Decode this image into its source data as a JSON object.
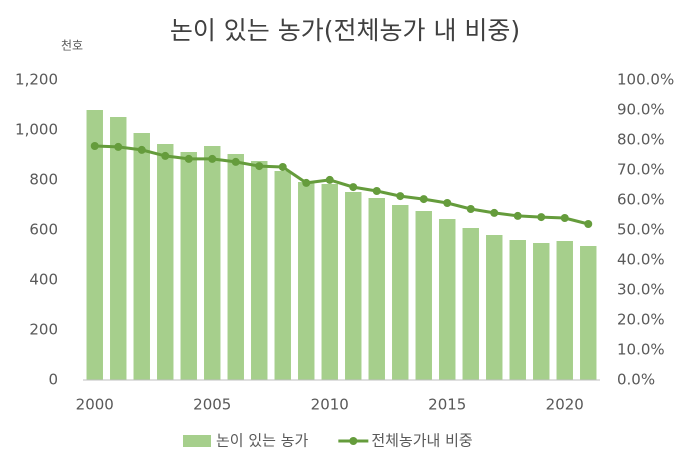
{
  "chart_data": {
    "type": "bar-line",
    "title": "논이 있는 농가(전체농가 내 비중)",
    "y_unit": "천호",
    "x": [
      2000,
      2001,
      2002,
      2003,
      2004,
      2005,
      2006,
      2007,
      2008,
      2009,
      2010,
      2011,
      2012,
      2013,
      2014,
      2015,
      2016,
      2017,
      2018,
      2019,
      2020,
      2021
    ],
    "xlim": [
      1999.5,
      2021.5
    ],
    "xticks": [
      2000,
      2005,
      2010,
      2015,
      2020
    ],
    "ylim": [
      0,
      1200
    ],
    "yticks": [
      0,
      200,
      400,
      600,
      800,
      {
        "value": 1000,
        "label": "1,000"
      },
      {
        "value": 1200,
        "label": "1,200"
      }
    ],
    "y2lim": [
      0,
      100
    ],
    "y2ticks": [
      {
        "value": 0,
        "label": "0.0%"
      },
      {
        "value": 10,
        "label": "10.0%"
      },
      {
        "value": 20,
        "label": "20.0%"
      },
      {
        "value": 30,
        "label": "30.0%"
      },
      {
        "value": 40,
        "label": "40.0%"
      },
      {
        "value": 50,
        "label": "50.0%"
      },
      {
        "value": 60,
        "label": "60.0%"
      },
      {
        "value": 70,
        "label": "70.0%"
      },
      {
        "value": 80,
        "label": "80.0%"
      },
      {
        "value": 90,
        "label": "90.0%"
      },
      {
        "value": 100,
        "label": "100.0%"
      }
    ],
    "grid": false,
    "legend": "bottom",
    "series": [
      {
        "name": "논이 있는 농가",
        "type": "bar",
        "color": "#a6cf8c",
        "axis": "y",
        "values": [
          1080,
          1052,
          988,
          944,
          912,
          936,
          904,
          876,
          836,
          792,
          784,
          752,
          728,
          700,
          676,
          644,
          608,
          580,
          560,
          548,
          556,
          536
        ]
      },
      {
        "name": "전체농가내 비중",
        "type": "line",
        "color": "#659c3c",
        "axis": "y2",
        "values": [
          78.0,
          77.7,
          76.7,
          74.7,
          73.7,
          73.7,
          72.7,
          71.3,
          71.0,
          65.7,
          66.7,
          64.3,
          63.0,
          61.3,
          60.3,
          59.0,
          57.0,
          55.7,
          54.7,
          54.3,
          54.0,
          52.0
        ]
      }
    ]
  }
}
